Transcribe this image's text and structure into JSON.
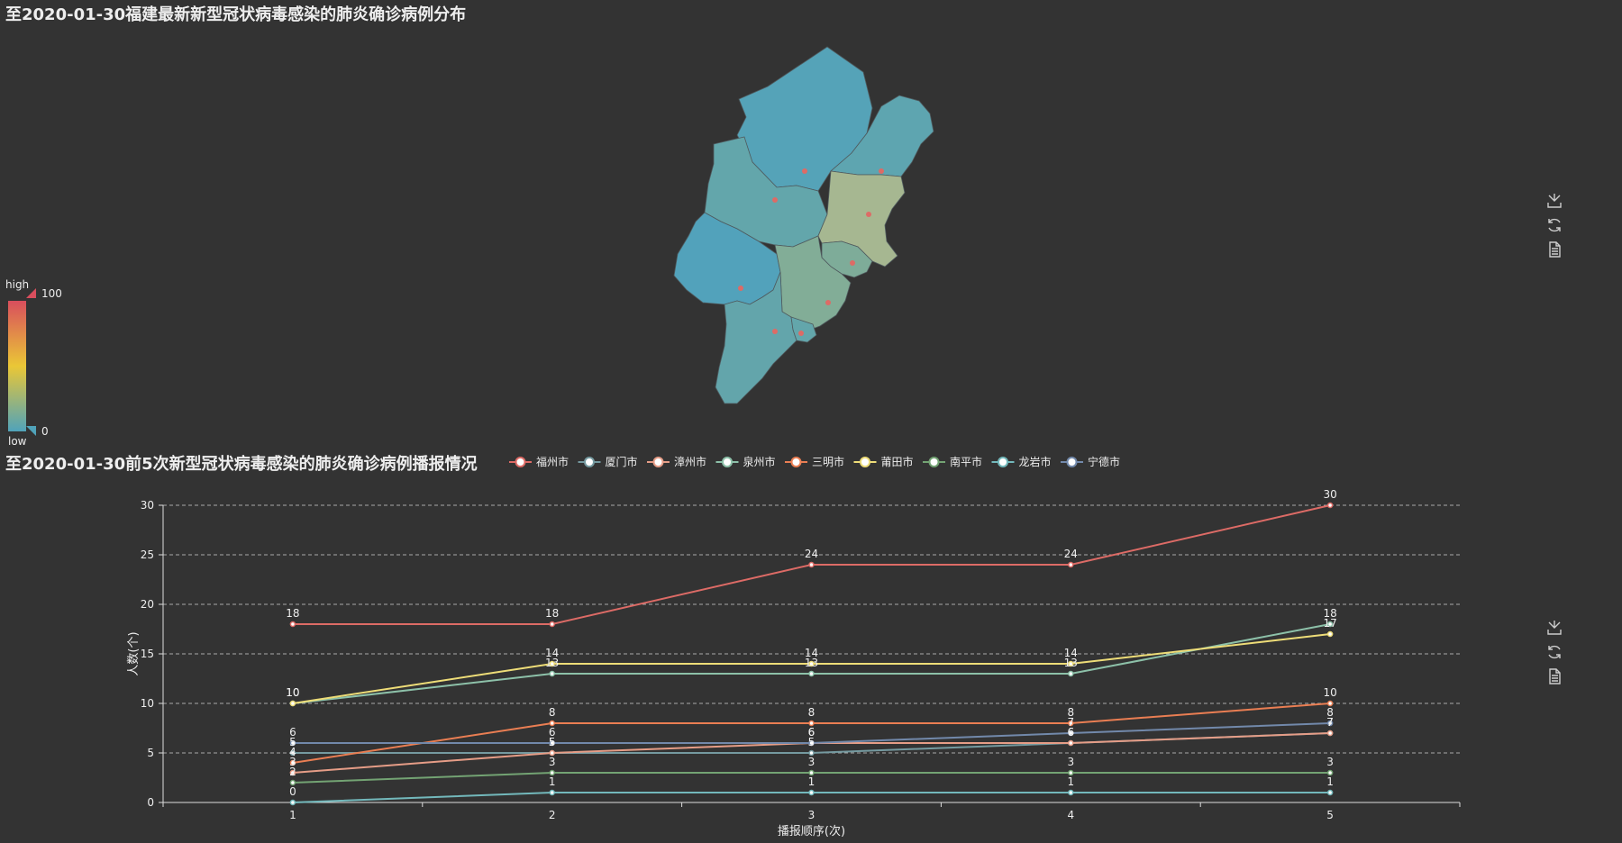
{
  "map_title": "至2020-01-30福建最新新型冠状病毒感染的肺炎确诊病例分布",
  "line_title": "至2020-01-30前5次新型冠状病毒感染的肺炎确诊病例播报情况",
  "visual_map": {
    "high_label": "high",
    "low_label": "low",
    "max": "100",
    "min": "0",
    "colors": [
      "#50a3ba",
      "#eac736",
      "#d94e5d"
    ]
  },
  "toolbox": [
    {
      "name": "save-image-icon"
    },
    {
      "name": "restore-icon"
    },
    {
      "name": "data-view-icon"
    }
  ],
  "chart_data": [
    {
      "type": "map",
      "title": "至2020-01-30福建最新新型冠状病毒感染的肺炎确诊病例分布",
      "region_colors": {
        "南平市": "#55a3b8",
        "宁德市": "#5ea5b0",
        "三明市": "#63a6ab",
        "福州市": "#a6b791",
        "龙岩市": "#52a2bb",
        "莆田市": "#7eac99",
        "泉州市": "#82ad97",
        "漳州市": "#63a5ab",
        "厦门市": "#63a6ab"
      },
      "visual_map_range": [
        0,
        100
      ]
    },
    {
      "type": "line",
      "title": "至2020-01-30前5次新型冠状病毒感染的肺炎确诊病例播报情况",
      "xlabel": "播报顺序(次)",
      "ylabel": "人数(个)",
      "x": [
        1,
        2,
        3,
        4,
        5
      ],
      "ylim": [
        0,
        30
      ],
      "yticks": [
        0,
        5,
        10,
        15,
        20,
        25,
        30
      ],
      "grid": "horizontal dashed",
      "legend_position": "top",
      "series": [
        {
          "name": "福州市",
          "color": "#dd6b66",
          "values": [
            18,
            18,
            24,
            24,
            30
          ]
        },
        {
          "name": "厦门市",
          "color": "#759aa0",
          "values": [
            5,
            5,
            5,
            6,
            7
          ]
        },
        {
          "name": "漳州市",
          "color": "#e69d87",
          "values": [
            3,
            5,
            6,
            6,
            7
          ]
        },
        {
          "name": "泉州市",
          "color": "#8dc1a9",
          "values": [
            10,
            13,
            13,
            13,
            18
          ]
        },
        {
          "name": "三明市",
          "color": "#ea7e53",
          "values": [
            4,
            8,
            8,
            8,
            10
          ]
        },
        {
          "name": "莆田市",
          "color": "#eedd78",
          "values": [
            10,
            14,
            14,
            14,
            17
          ]
        },
        {
          "name": "南平市",
          "color": "#73a373",
          "values": [
            2,
            3,
            3,
            3,
            3
          ]
        },
        {
          "name": "龙岩市",
          "color": "#73b9bc",
          "values": [
            0,
            1,
            1,
            1,
            1
          ]
        },
        {
          "name": "宁德市",
          "color": "#7289ab",
          "values": [
            6,
            6,
            6,
            7,
            8
          ]
        }
      ]
    }
  ]
}
